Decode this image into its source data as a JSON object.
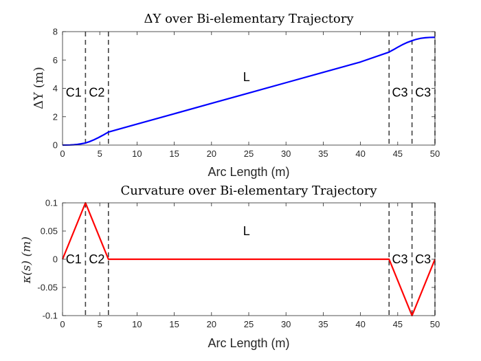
{
  "chart_data": [
    {
      "type": "line",
      "title": "ΔY over Bi-elementary Trajectory",
      "xlabel": "Arc Length (m)",
      "ylabel": "ΔY (m)",
      "xlim": [
        0,
        50
      ],
      "ylim": [
        0,
        8
      ],
      "xticks": [
        0,
        5,
        10,
        15,
        20,
        25,
        30,
        35,
        40,
        45,
        50
      ],
      "yticks": [
        0,
        2,
        4,
        6,
        8
      ],
      "series": [
        {
          "color": "#0000ff",
          "x": [
            0,
            0.5,
            1,
            1.5,
            2,
            2.5,
            3.08,
            3.6,
            4.2,
            4.8,
            5.4,
            6.16,
            10,
            15,
            20,
            25,
            30,
            35,
            40,
            43.8,
            44.4,
            45,
            45.6,
            46.2,
            46.92,
            47.5,
            48.1,
            48.7,
            49.3,
            50
          ],
          "y": [
            0,
            0.003,
            0.01,
            0.025,
            0.05,
            0.09,
            0.15,
            0.24,
            0.37,
            0.52,
            0.69,
            0.92,
            1.48,
            2.21,
            2.94,
            3.67,
            4.4,
            5.13,
            5.86,
            6.55,
            6.72,
            6.9,
            7.07,
            7.22,
            7.36,
            7.46,
            7.53,
            7.57,
            7.59,
            7.6
          ]
        }
      ],
      "vlines": [
        3.08,
        6.16,
        43.84,
        46.92,
        50
      ],
      "segment_labels": [
        {
          "text": "C1",
          "x": 1.5,
          "y": 3.7
        },
        {
          "text": "C2",
          "x": 4.6,
          "y": 3.7
        },
        {
          "text": "L",
          "x": 24.7,
          "y": 4.8
        },
        {
          "text": "C3",
          "x": 45.3,
          "y": 3.7
        },
        {
          "text": "C3",
          "x": 48.4,
          "y": 3.7
        }
      ]
    },
    {
      "type": "line",
      "title": "Curvature over Bi-elementary Trajectory",
      "xlabel": "Arc Length (m)",
      "ylabel": "κ(s) (m)",
      "xlim": [
        0,
        50
      ],
      "ylim": [
        -0.1,
        0.1
      ],
      "xticks": [
        0,
        5,
        10,
        15,
        20,
        25,
        30,
        35,
        40,
        45,
        50
      ],
      "yticks": [
        -0.1,
        -0.05,
        0,
        0.05,
        0.1
      ],
      "ytick_labels": [
        "-0.1",
        "-0.05",
        "0",
        "0.05",
        "0.1"
      ],
      "series": [
        {
          "color": "#ff0000",
          "x": [
            0,
            3.08,
            6.16,
            43.84,
            46.92,
            50
          ],
          "y": [
            0,
            0.1,
            0,
            0,
            -0.1,
            0
          ]
        }
      ],
      "vlines": [
        3.08,
        6.16,
        43.84,
        46.92,
        50
      ],
      "segment_labels": [
        {
          "text": "C1",
          "x": 1.5,
          "y": 0
        },
        {
          "text": "C2",
          "x": 4.6,
          "y": 0
        },
        {
          "text": "L",
          "x": 24.7,
          "y": 0.05
        },
        {
          "text": "C3",
          "x": 45.3,
          "y": 0
        },
        {
          "text": "C3",
          "x": 48.4,
          "y": 0
        }
      ]
    }
  ]
}
